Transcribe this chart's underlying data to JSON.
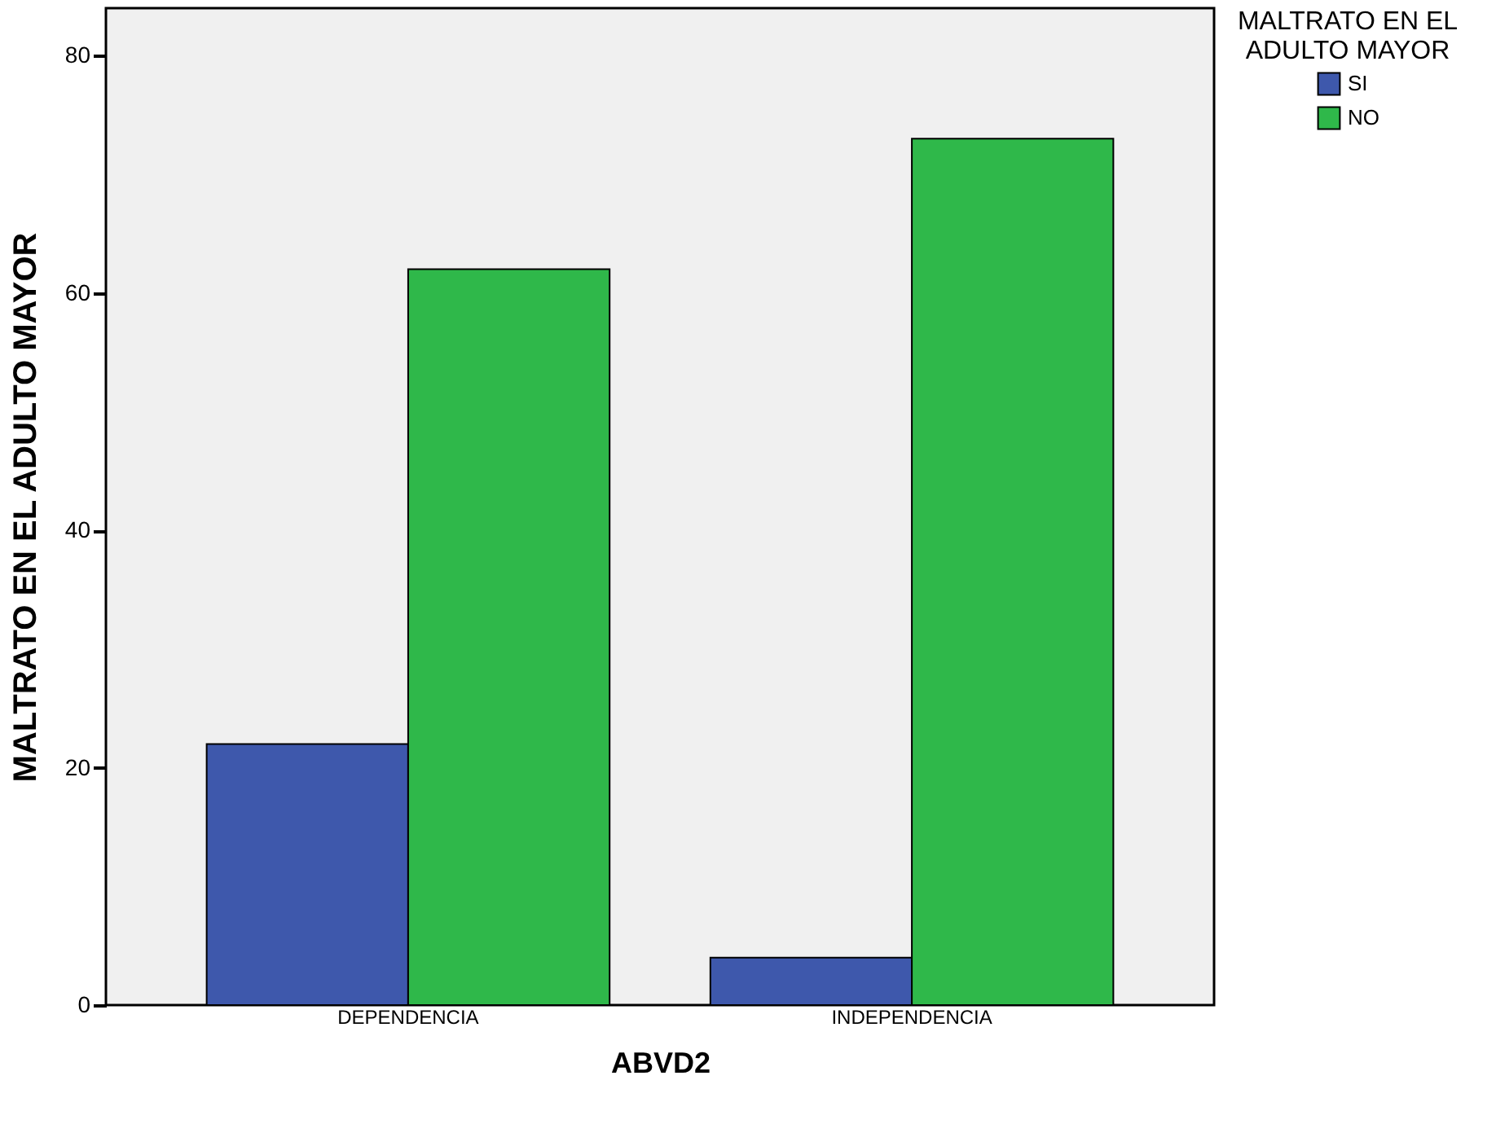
{
  "chart_data": {
    "type": "bar",
    "xlabel": "ABVD2",
    "ylabel": "MALTRATO EN EL ADULTO MAYOR",
    "legend_title": "MALTRATO EN EL ADULTO MAYOR",
    "legend": "top right",
    "grid": false,
    "categories": [
      "DEPENDENCIA",
      "INDEPENDENCIA"
    ],
    "series": [
      {
        "name": "SI",
        "color": "#3e58ac",
        "values": [
          22,
          4
        ]
      },
      {
        "name": "NO",
        "color": "#2fb84a",
        "values": [
          62,
          73
        ]
      }
    ],
    "ylim": [
      0,
      84
    ],
    "yticks": [
      0,
      20,
      40,
      60,
      80
    ]
  }
}
